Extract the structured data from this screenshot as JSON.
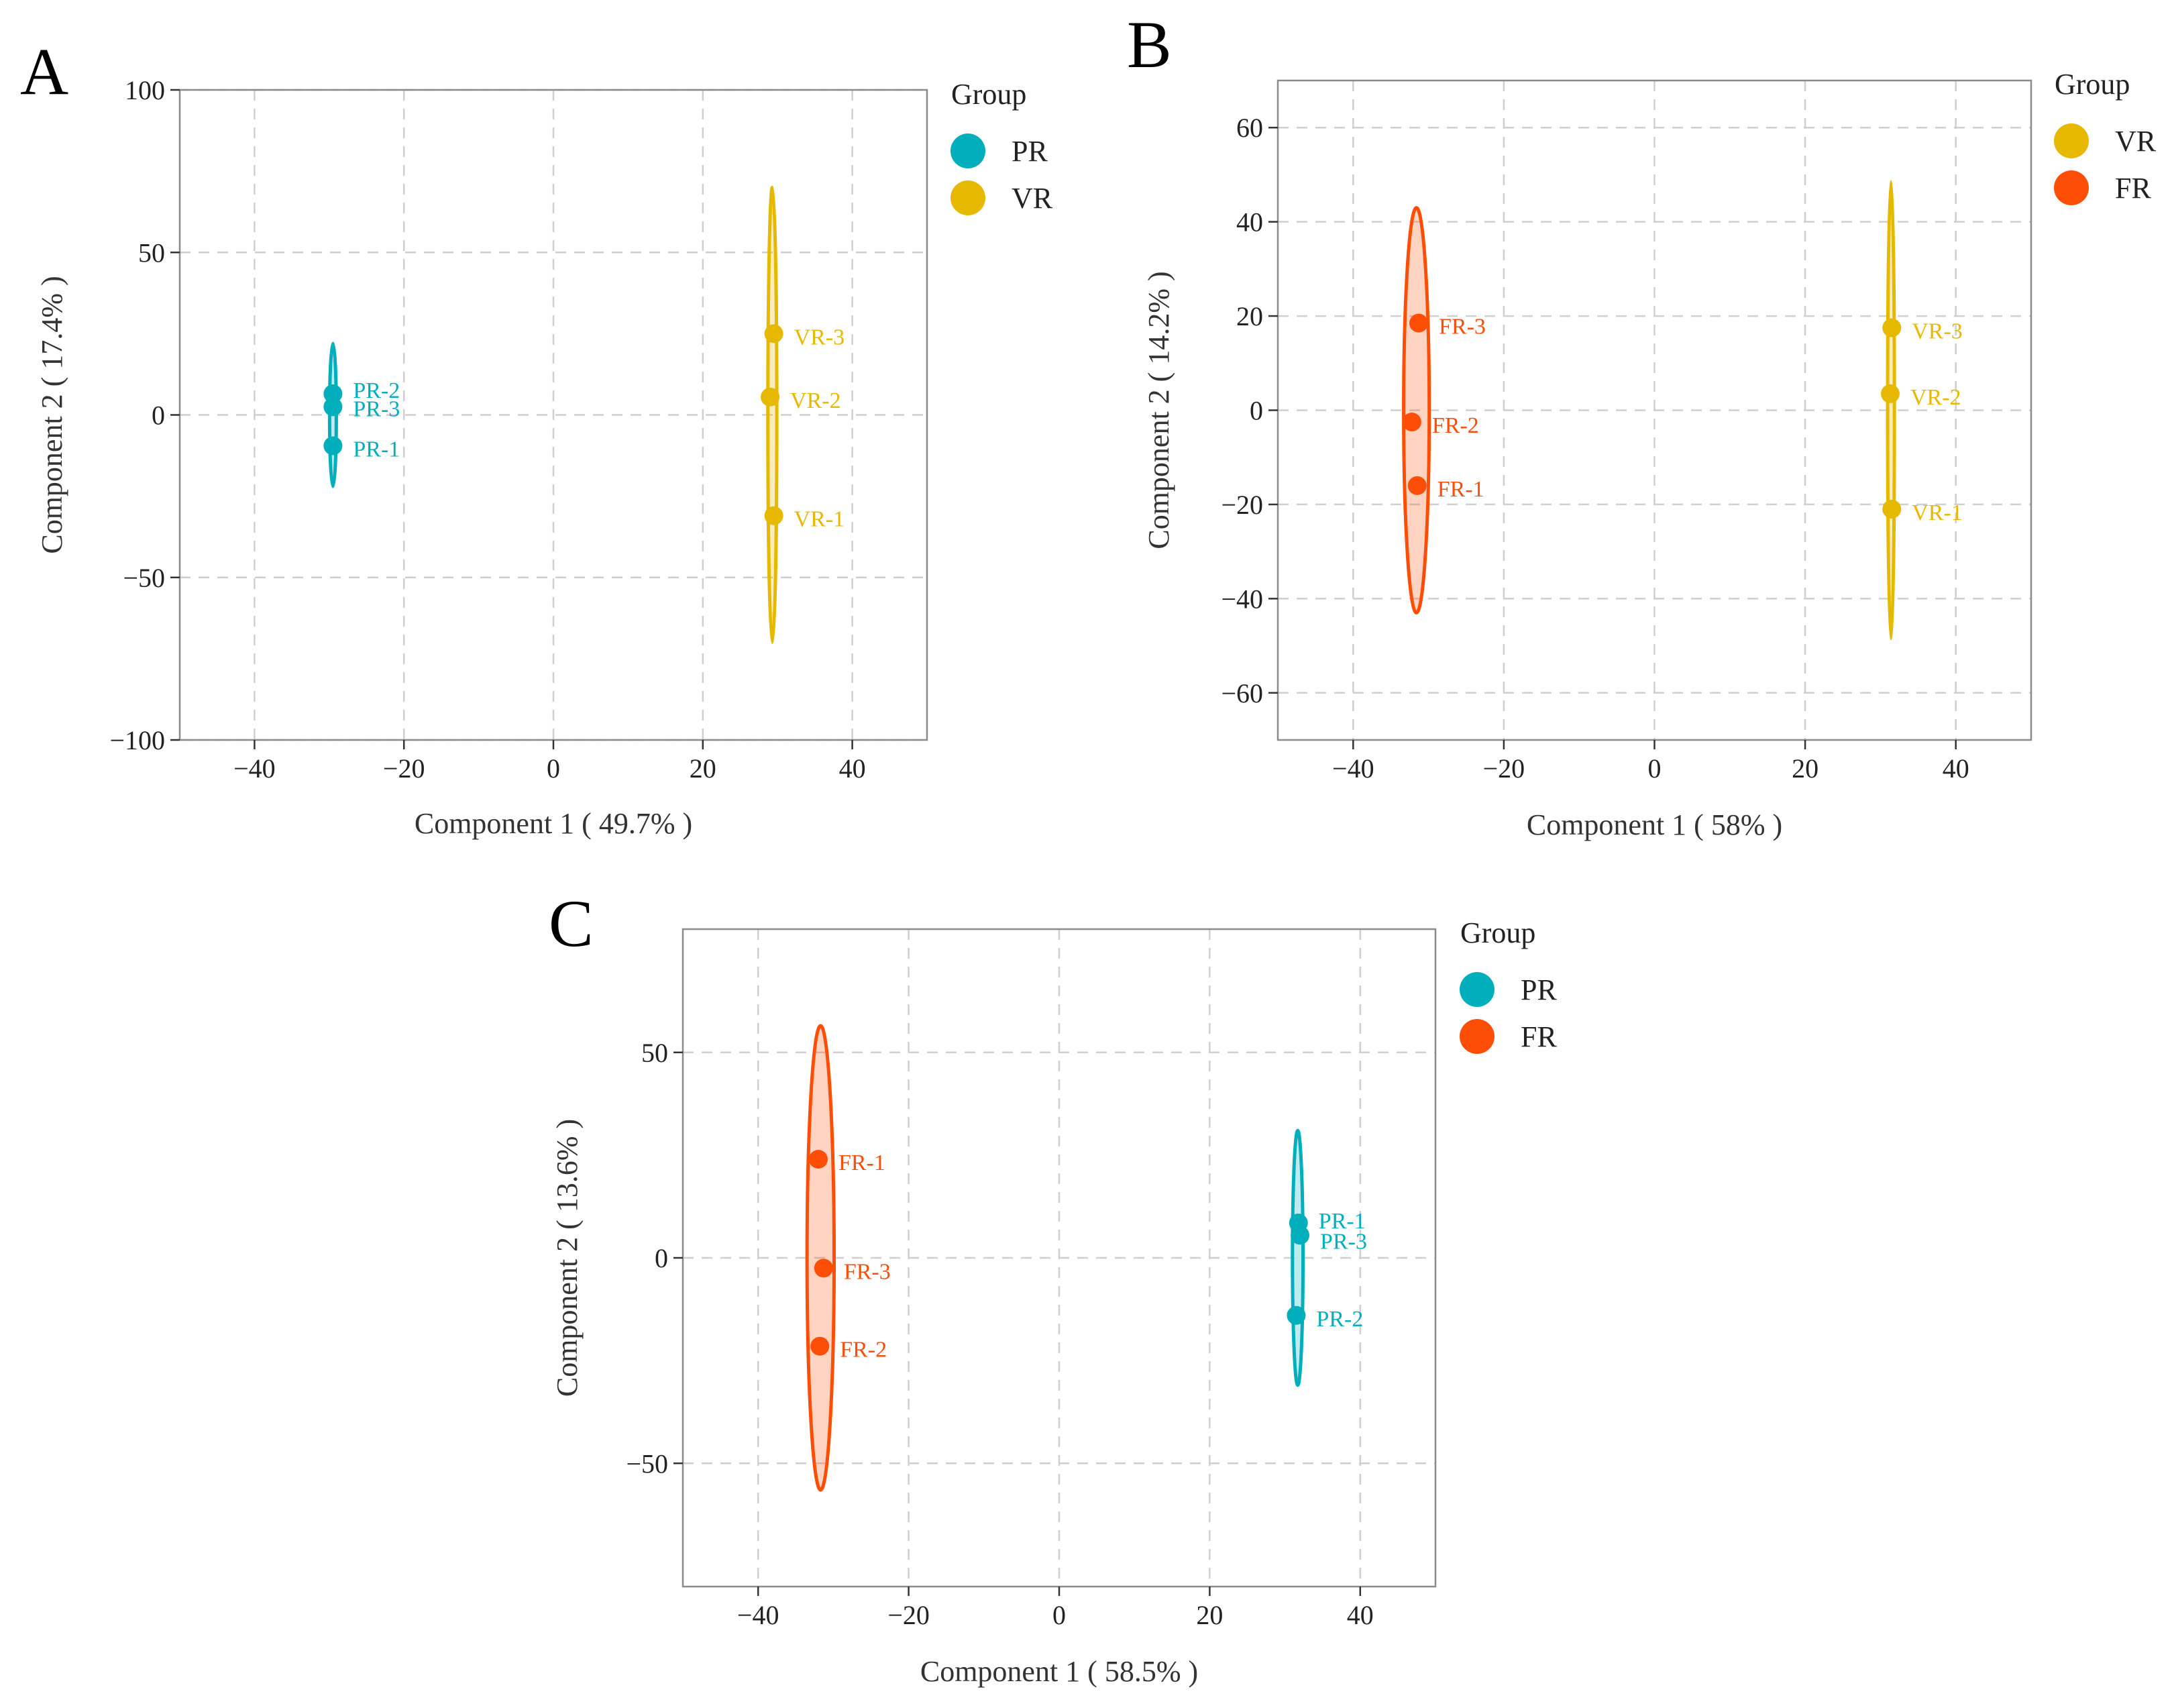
{
  "colors": {
    "PR": "#00AFBB",
    "VR": "#E7B800",
    "FR": "#FC4E07"
  },
  "chart_data": [
    {
      "type": "scatter",
      "panel_label": "A",
      "xlabel": "Component 1 ( 49.7% )",
      "ylabel": "Component 2 ( 17.4% )",
      "xlim": [
        -50,
        50
      ],
      "ylim": [
        -100,
        100
      ],
      "xticks": [
        -40,
        -20,
        0,
        20,
        40
      ],
      "yticks": [
        -100,
        -50,
        0,
        50,
        100
      ],
      "grid": true,
      "legend": {
        "title": "Group",
        "position": "right",
        "entries": [
          "PR",
          "VR"
        ]
      },
      "series": [
        {
          "name": "PR",
          "points": [
            {
              "label": "PR-1",
              "x": -29.5,
              "y": -9.5
            },
            {
              "label": "PR-2",
              "x": -29.5,
              "y": 6.5
            },
            {
              "label": "PR-3",
              "x": -29.5,
              "y": 2.5
            }
          ],
          "ellipse": {
            "cx": -29.5,
            "cy": 0,
            "rx": 0.45,
            "ry": 22
          }
        },
        {
          "name": "VR",
          "points": [
            {
              "label": "VR-1",
              "x": 29.5,
              "y": -31
            },
            {
              "label": "VR-2",
              "x": 29.0,
              "y": 5.5
            },
            {
              "label": "VR-3",
              "x": 29.5,
              "y": 25
            }
          ],
          "ellipse": {
            "cx": 29.3,
            "cy": 0,
            "rx": 0.6,
            "ry": 70
          }
        }
      ]
    },
    {
      "type": "scatter",
      "panel_label": "B",
      "xlabel": "Component 1 ( 58% )",
      "ylabel": "Component 2 ( 14.2% )",
      "xlim": [
        -50,
        50
      ],
      "ylim": [
        -70,
        70
      ],
      "xticks": [
        -40,
        -20,
        0,
        20,
        40
      ],
      "yticks": [
        -60,
        -40,
        -20,
        0,
        20,
        40,
        60
      ],
      "grid": true,
      "legend": {
        "title": "Group",
        "position": "right",
        "entries": [
          "VR",
          "FR"
        ]
      },
      "series": [
        {
          "name": "VR",
          "points": [
            {
              "label": "VR-1",
              "x": 31.5,
              "y": -21
            },
            {
              "label": "VR-2",
              "x": 31.3,
              "y": 3.5
            },
            {
              "label": "VR-3",
              "x": 31.5,
              "y": 17.5
            }
          ],
          "ellipse": {
            "cx": 31.4,
            "cy": 0,
            "rx": 0.45,
            "ry": 48.5
          }
        },
        {
          "name": "FR",
          "points": [
            {
              "label": "FR-1",
              "x": -31.5,
              "y": -16
            },
            {
              "label": "FR-2",
              "x": -32.2,
              "y": -2.5
            },
            {
              "label": "FR-3",
              "x": -31.3,
              "y": 18.5
            }
          ],
          "ellipse": {
            "cx": -31.6,
            "cy": 0,
            "rx": 1.7,
            "ry": 43
          }
        }
      ]
    },
    {
      "type": "scatter",
      "panel_label": "C",
      "xlabel": "Component 1 ( 58.5% )",
      "ylabel": "Component 2 ( 13.6% )",
      "xlim": [
        -50,
        50
      ],
      "ylim": [
        -80,
        80
      ],
      "xticks": [
        -40,
        -20,
        0,
        20,
        40
      ],
      "yticks": [
        -50,
        0,
        50
      ],
      "grid": true,
      "legend": {
        "title": "Group",
        "position": "right",
        "entries": [
          "PR",
          "FR"
        ]
      },
      "series": [
        {
          "name": "PR",
          "points": [
            {
              "label": "PR-1",
              "x": 31.8,
              "y": 8.5
            },
            {
              "label": "PR-2",
              "x": 31.5,
              "y": -14
            },
            {
              "label": "PR-3",
              "x": 32.0,
              "y": 5.5
            }
          ],
          "ellipse": {
            "cx": 31.7,
            "cy": 0,
            "rx": 0.7,
            "ry": 31
          }
        },
        {
          "name": "FR",
          "points": [
            {
              "label": "FR-1",
              "x": -32.0,
              "y": 24
            },
            {
              "label": "FR-2",
              "x": -31.8,
              "y": -21.5
            },
            {
              "label": "FR-3",
              "x": -31.3,
              "y": -2.5
            }
          ],
          "ellipse": {
            "cx": -31.7,
            "cy": 0,
            "rx": 1.8,
            "ry": 56.5
          }
        }
      ]
    }
  ]
}
